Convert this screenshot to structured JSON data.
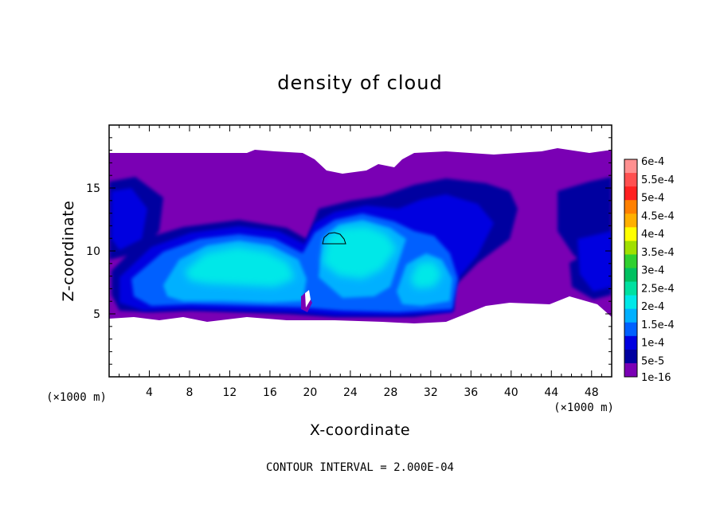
{
  "chart_data": {
    "type": "heatmap",
    "title": "density of cloud",
    "xlabel": "X-coordinate",
    "ylabel": "Z-coordinate",
    "x_unit": "(×1000 m)",
    "z_unit": "(×1000 m)",
    "xlim": [
      0,
      50
    ],
    "ylim": [
      0,
      20
    ],
    "x_ticks": [
      "4",
      "8",
      "12",
      "16",
      "20",
      "24",
      "28",
      "32",
      "36",
      "40",
      "44",
      "48"
    ],
    "y_ticks": [
      "5",
      "10",
      "15"
    ],
    "contour_interval_label": "CONTOUR INTERVAL = 2.000E-04",
    "colorbar": {
      "labels": [
        "6e-4",
        "5.5e-4",
        "5e-4",
        "4.5e-4",
        "4e-4",
        "3.5e-4",
        "3e-4",
        "2.5e-4",
        "2e-4",
        "1.5e-4",
        "1e-4",
        "5e-5",
        "1e-16"
      ],
      "colors": [
        "#ff9090",
        "#ff5050",
        "#ff2020",
        "#ff8000",
        "#ffb000",
        "#ffff00",
        "#a0e000",
        "#30d030",
        "#00c060",
        "#00e0a0",
        "#00e8e8",
        "#00b0ff",
        "#0060ff",
        "#0000e0",
        "#0000a0",
        "#7a00b4"
      ]
    },
    "cloud_extent": {
      "z_base": 4.5,
      "z_top": 17.8
    },
    "features": [
      {
        "name": "left blob",
        "x_center": 13.0,
        "z_center": 8.5,
        "level": "1.5e-4 to 2e-4"
      },
      {
        "name": "central tower",
        "x_center": 24.0,
        "z_center": 9.5,
        "level": "2e-4"
      },
      {
        "name": "right blob",
        "x_center": 31.0,
        "z_center": 7.0,
        "level": "1.5e-4"
      }
    ]
  }
}
